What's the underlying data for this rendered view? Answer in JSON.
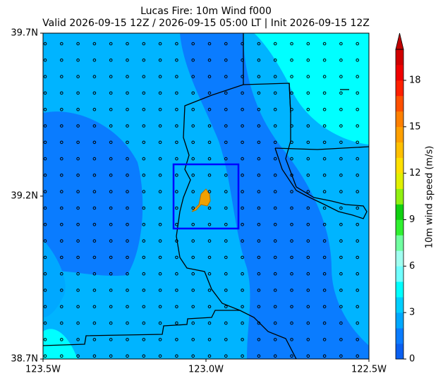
{
  "map": {
    "title": "Lucas Fire: 10m Wind f000",
    "subtitle": "Valid 2026-09-15 12Z / 2026-09-15 05:00 LT | Init 2026-09-15 12Z",
    "xlim": [
      -123.5,
      -122.5
    ],
    "ylim": [
      38.7,
      39.7
    ],
    "xticks": [
      {
        "value": -123.5,
        "label": "123.5W"
      },
      {
        "value": -123.0,
        "label": "123.0W"
      },
      {
        "value": -122.5,
        "label": "122.5W"
      }
    ],
    "yticks": [
      {
        "value": 38.7,
        "label": "38.7N"
      },
      {
        "value": 39.2,
        "label": "39.2N"
      },
      {
        "value": 39.7,
        "label": "39.7N"
      }
    ]
  },
  "colorbar": {
    "label": "10m wind speed (m/s)",
    "lim": [
      0,
      20
    ],
    "ticks": [
      0,
      3,
      6,
      9,
      12,
      15,
      18
    ],
    "colors": [
      "#0a5ff0",
      "#0a7cff",
      "#00a8ff",
      "#00cfff",
      "#00ffff",
      "#70ffff",
      "#a0fff0",
      "#70ffa0",
      "#30f030",
      "#10d010",
      "#90f010",
      "#e0f000",
      "#ffe000",
      "#ffc000",
      "#ffa000",
      "#ff8000",
      "#ff5000",
      "#ff2000",
      "#f00000",
      "#d00000"
    ],
    "extend_color": "#c00000"
  }
}
